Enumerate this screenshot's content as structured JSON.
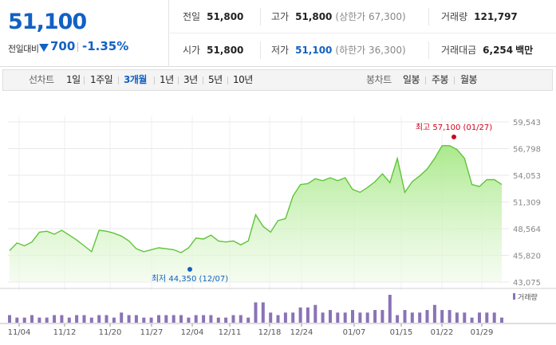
{
  "summary": {
    "price": "51,100",
    "change_label": "전일대비",
    "change_amount": "700",
    "change_rate": "-1.35%",
    "prev_close_label": "전일",
    "prev_close": "51,800",
    "high_label": "고가",
    "high": "51,800",
    "upper_limit": "(상한가 67,300)",
    "volume_label": "거래량",
    "volume": "121,797",
    "open_label": "시가",
    "open": "51,800",
    "low_label": "저가",
    "low": "51,100",
    "lower_limit": "(하한가 36,300)",
    "trade_value_label": "거래대금",
    "trade_value": "6,254",
    "trade_value_unit": "백만",
    "colors": {
      "down": "#1261c4",
      "up": "#d0021b"
    }
  },
  "tabs": {
    "line_label": "선차트",
    "line_periods": [
      "1일",
      "1주일",
      "3개월",
      "1년",
      "3년",
      "5년",
      "10년"
    ],
    "active_period": "3개월",
    "candle_label": "봉차트",
    "candle_periods": [
      "일봉",
      "주봉",
      "월봉"
    ]
  },
  "chart_data": {
    "type": "area",
    "y_ticks": [
      "59,543",
      "56,798",
      "54,053",
      "51,309",
      "48,564",
      "45,820",
      "43,075"
    ],
    "ylim": [
      43075,
      59543
    ],
    "x_ticks": [
      "11/04",
      "11/12",
      "11/20",
      "11/27",
      "12/04",
      "12/11",
      "12/18",
      "12/24",
      "01/07",
      "01/15",
      "01/22",
      "01/29"
    ],
    "prices": [
      46300,
      47100,
      46800,
      47200,
      48200,
      48300,
      48000,
      48400,
      47900,
      47400,
      46800,
      46200,
      48400,
      48300,
      48100,
      47800,
      47300,
      46500,
      46200,
      46400,
      46600,
      46500,
      46400,
      46100,
      46600,
      47600,
      47500,
      47900,
      47300,
      47200,
      47300,
      46900,
      47300,
      50000,
      48800,
      48200,
      49400,
      49600,
      51900,
      53100,
      53200,
      53700,
      53500,
      53800,
      53500,
      53800,
      52600,
      52300,
      52800,
      53400,
      54200,
      53300,
      55800,
      52300,
      53400,
      54000,
      54700,
      55800,
      57100,
      57100,
      56700,
      55800,
      53100,
      52900,
      53600,
      53600,
      53100
    ],
    "volumes": [
      3,
      2,
      2,
      3,
      2,
      2,
      3,
      3,
      2,
      3,
      3,
      2,
      3,
      3,
      2,
      4,
      3,
      3,
      2,
      2,
      3,
      3,
      3,
      3,
      2,
      3,
      3,
      3,
      2,
      2,
      3,
      3,
      2,
      8,
      8,
      4,
      3,
      4,
      4,
      6,
      6,
      7,
      4,
      5,
      4,
      4,
      5,
      4,
      4,
      5,
      5,
      11,
      3,
      5,
      4,
      4,
      5,
      7,
      5,
      5,
      4,
      4,
      2,
      4,
      4,
      4,
      2
    ],
    "high_annotation": "최고 57,100 (01/27)",
    "low_annotation": "최저 44,350 (12/07)",
    "volume_legend": "거래량",
    "grid": true
  }
}
